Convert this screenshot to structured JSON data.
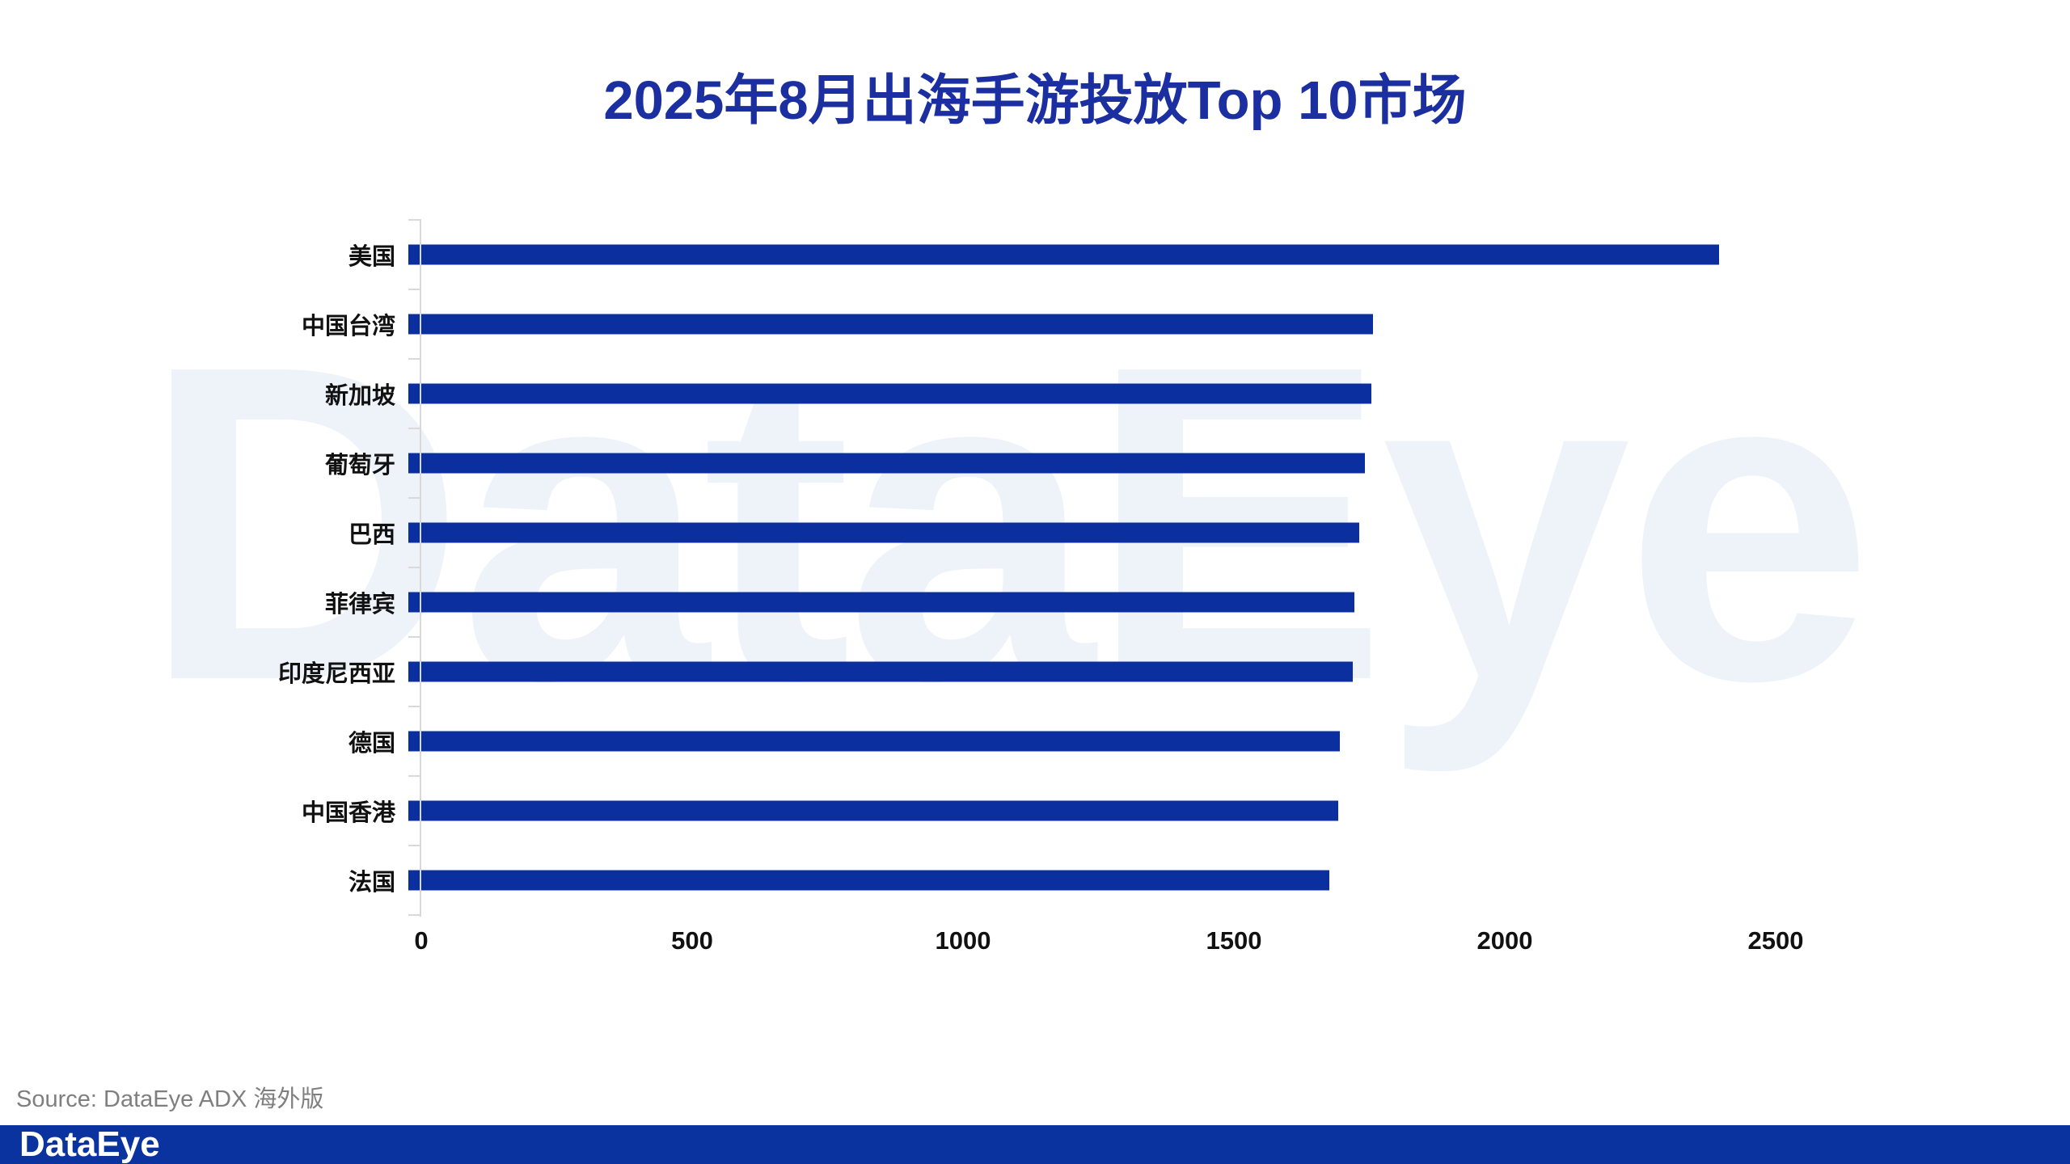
{
  "title": "2025年8月出海手游投放Top 10市场",
  "watermark": "DataEye",
  "source": "Source: DataEye ADX 海外版",
  "footer": {
    "logo": "DataEye"
  },
  "colors": {
    "bar": "#0B2F9E",
    "title": "#1B2FA0",
    "footer_bar": "#0A339F",
    "axis": "#D9D9D9",
    "watermark": "#EEF3FA",
    "source_text": "#7F7F7F",
    "label_text": "#111111"
  },
  "chart_data": {
    "type": "bar",
    "orientation": "horizontal",
    "title": "2025年8月出海手游投放Top 10市场",
    "categories": [
      "美国",
      "中国台湾",
      "新加坡",
      "葡萄牙",
      "巴西",
      "菲律宾",
      "印度尼西亚",
      "德国",
      "中国香港",
      "法国"
    ],
    "values": [
      2420,
      1780,
      1778,
      1766,
      1755,
      1746,
      1743,
      1719,
      1717,
      1700
    ],
    "x_ticks": [
      0,
      500,
      1000,
      1500,
      2000,
      2500
    ],
    "xlim": [
      0,
      2500
    ],
    "xlabel": "",
    "ylabel": "",
    "grid": false,
    "legend": null
  }
}
